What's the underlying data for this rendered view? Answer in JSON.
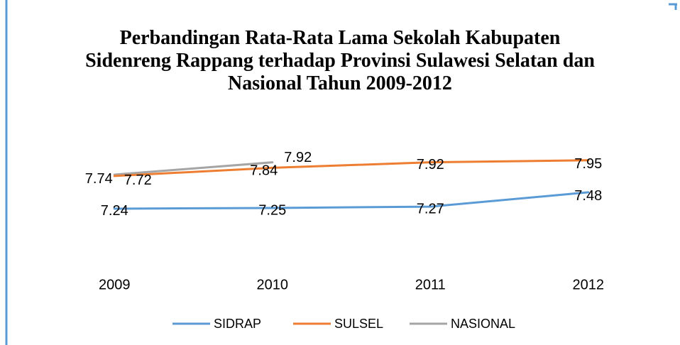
{
  "chart_data": {
    "type": "line",
    "title": "Perbandingan Rata-Rata Lama Sekolah Kabupaten Sidenreng Rappang terhadap Provinsi Sulawesi Selatan dan Nasional Tahun 2009-2012",
    "categories": [
      "2009",
      "2010",
      "2011",
      "2012"
    ],
    "series": [
      {
        "name": "SIDRAP",
        "color": "#5b9bd5",
        "values": [
          7.24,
          7.25,
          7.27,
          7.48
        ]
      },
      {
        "name": "SULSEL",
        "color": "#ed7d31",
        "values": [
          7.72,
          7.84,
          7.92,
          7.95
        ]
      },
      {
        "name": "NASIONAL",
        "color": "#a5a5a5",
        "values": [
          7.74,
          7.92,
          null,
          null
        ]
      }
    ],
    "ylim": [
      6.5,
      8.5
    ],
    "legend": "bottom"
  }
}
